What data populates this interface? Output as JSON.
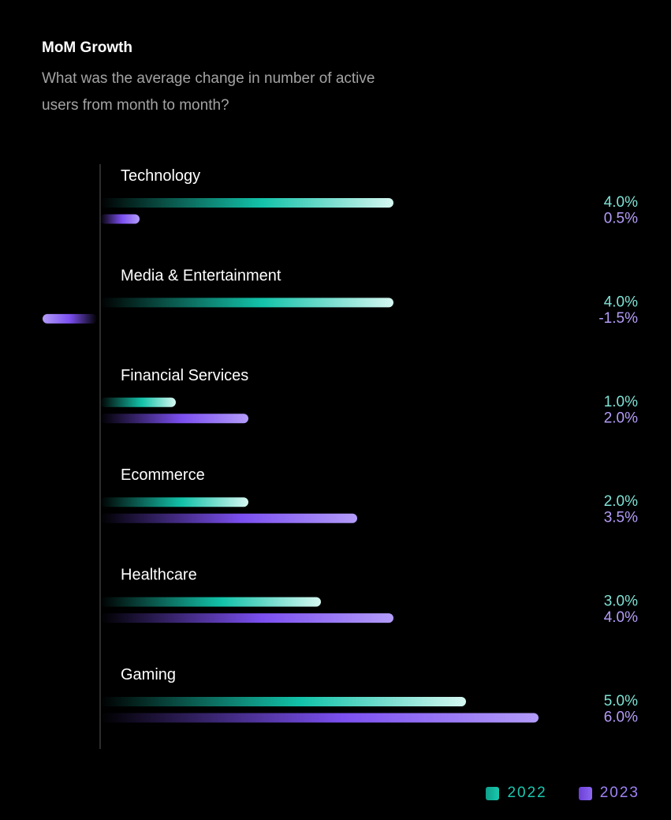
{
  "chart_data": {
    "type": "bar",
    "orientation": "horizontal",
    "title": "MoM Growth",
    "subtitle": "What was the average change in number of active users from month to month?",
    "categories": [
      "Technology",
      "Media & Entertainment",
      "Financial Services",
      "Ecommerce",
      "Healthcare",
      "Gaming"
    ],
    "series": [
      {
        "name": "2022",
        "color": "#19c9b0",
        "values": [
          4.0,
          4.0,
          1.0,
          2.0,
          3.0,
          5.0
        ],
        "labels": [
          "4.0%",
          "4.0%",
          "1.0%",
          "2.0%",
          "3.0%",
          "5.0%"
        ]
      },
      {
        "name": "2023",
        "color": "#8c66f0",
        "values": [
          0.5,
          -1.5,
          2.0,
          3.5,
          4.0,
          6.0
        ],
        "labels": [
          "0.5%",
          "-1.5%",
          "2.0%",
          "3.5%",
          "4.0%",
          "6.0%"
        ]
      }
    ],
    "xlim": [
      -1.5,
      6.0
    ],
    "grid": false,
    "legend_position": "bottom-right"
  },
  "colors": {
    "background": "#000000",
    "label_2022": "#7fe3d6",
    "label_2023": "#b49cf8",
    "category_text": "#ffffff",
    "axis_line": "#3a3a3a"
  }
}
